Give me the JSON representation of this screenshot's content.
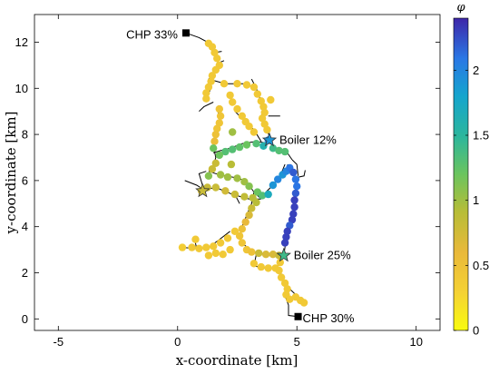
{
  "chart_data": {
    "type": "scatter",
    "title": "",
    "xlabel": "x-coordinate [km]",
    "ylabel": "y-coordinate [km]",
    "xlim": [
      -6,
      11
    ],
    "ylim": [
      -0.5,
      13.2
    ],
    "xticks": [
      -5,
      0,
      5,
      10
    ],
    "yticks": [
      0,
      2,
      4,
      6,
      8,
      10,
      12
    ],
    "grid": false,
    "colorbar": {
      "label": "φ",
      "range": [
        0,
        2.4
      ],
      "ticks": [
        0,
        0.5,
        1,
        1.5,
        2
      ],
      "colormap": "parula"
    },
    "network_lines": [
      [
        [
          0.35,
          12.4
        ],
        [
          0.9,
          12.2
        ],
        [
          1.35,
          11.95
        ],
        [
          1.55,
          11.55
        ],
        [
          1.7,
          11.1
        ],
        [
          1.6,
          10.7
        ],
        [
          1.3,
          10.4
        ],
        [
          1.4,
          10.0
        ],
        [
          1.2,
          9.6
        ]
      ],
      [
        [
          1.55,
          11.55
        ],
        [
          1.85,
          11.6
        ]
      ],
      [
        [
          1.7,
          11.1
        ],
        [
          1.95,
          11.2
        ]
      ],
      [
        [
          1.3,
          10.4
        ],
        [
          2.0,
          10.2
        ],
        [
          2.8,
          10.2
        ],
        [
          3.3,
          10.0
        ],
        [
          3.4,
          9.7
        ],
        [
          3.6,
          9.2
        ],
        [
          3.5,
          8.7
        ],
        [
          3.7,
          8.3
        ],
        [
          3.9,
          7.8
        ]
      ],
      [
        [
          3.3,
          10.0
        ],
        [
          3.1,
          10.4
        ]
      ],
      [
        [
          1.5,
          9.4
        ],
        [
          1.1,
          9.2
        ],
        [
          0.9,
          9.0
        ]
      ],
      [
        [
          2.4,
          9.0
        ],
        [
          2.8,
          8.6
        ],
        [
          3.2,
          8.2
        ],
        [
          3.5,
          7.7
        ]
      ],
      [
        [
          1.7,
          9.0
        ],
        [
          1.8,
          8.5
        ],
        [
          1.6,
          8.0
        ],
        [
          1.5,
          7.5
        ],
        [
          1.6,
          7.0
        ],
        [
          1.5,
          6.6
        ]
      ],
      [
        [
          3.8,
          8.8
        ],
        [
          4.3,
          8.8
        ]
      ],
      [
        [
          3.9,
          7.6
        ],
        [
          4.2,
          7.35
        ],
        [
          4.6,
          7.2
        ],
        [
          4.8,
          6.9
        ]
      ],
      [
        [
          3.9,
          7.6
        ],
        [
          3.3,
          7.7
        ],
        [
          2.7,
          7.6
        ],
        [
          2.2,
          7.4
        ],
        [
          1.8,
          7.3
        ],
        [
          1.5,
          7.2
        ]
      ],
      [
        [
          1.3,
          6.4
        ],
        [
          1.6,
          6.3
        ],
        [
          2.0,
          6.2
        ],
        [
          2.6,
          6.1
        ],
        [
          3.0,
          5.8
        ],
        [
          3.2,
          5.5
        ],
        [
          3.5,
          5.2
        ]
      ],
      [
        [
          3.2,
          5.5
        ],
        [
          3.1,
          5.0
        ],
        [
          2.9,
          4.5
        ],
        [
          2.7,
          4.0
        ],
        [
          2.6,
          3.5
        ],
        [
          2.8,
          3.2
        ],
        [
          3.2,
          2.9
        ],
        [
          3.8,
          2.8
        ],
        [
          4.3,
          2.8
        ]
      ],
      [
        [
          1.1,
          5.6
        ],
        [
          0.9,
          6.3
        ],
        [
          1.2,
          6.4
        ]
      ],
      [
        [
          1.1,
          5.6
        ],
        [
          1.6,
          5.7
        ]
      ],
      [
        [
          0.3,
          6.0
        ],
        [
          0.8,
          5.8
        ],
        [
          1.1,
          5.6
        ]
      ],
      [
        [
          1.6,
          5.7
        ],
        [
          2.3,
          5.4
        ],
        [
          3.0,
          5.2
        ],
        [
          3.5,
          5.2
        ]
      ],
      [
        [
          2.6,
          5.0
        ],
        [
          2.4,
          5.4
        ]
      ],
      [
        [
          2.2,
          3.8
        ],
        [
          1.7,
          3.4
        ],
        [
          1.3,
          3.1
        ],
        [
          0.8,
          3.05
        ],
        [
          0.2,
          3.1
        ]
      ],
      [
        [
          0.8,
          3.05
        ],
        [
          0.7,
          3.5
        ]
      ],
      [
        [
          4.5,
          6.7
        ],
        [
          4.3,
          6.2
        ],
        [
          4.0,
          5.8
        ],
        [
          3.7,
          5.5
        ],
        [
          3.6,
          5.3
        ]
      ],
      [
        [
          4.6,
          6.7
        ],
        [
          4.8,
          6.4
        ],
        [
          5.0,
          5.9
        ],
        [
          4.9,
          5.4
        ],
        [
          4.85,
          5.0
        ],
        [
          4.85,
          4.5
        ],
        [
          4.7,
          4.0
        ],
        [
          4.55,
          3.5
        ],
        [
          4.5,
          3.1
        ],
        [
          4.45,
          2.75
        ]
      ],
      [
        [
          4.85,
          6.1
        ],
        [
          5.3,
          6.2
        ],
        [
          5.35,
          6.45
        ]
      ],
      [
        [
          4.8,
          6.9
        ],
        [
          5.0,
          6.7
        ],
        [
          5.05,
          6.2
        ]
      ],
      [
        [
          4.4,
          2.75
        ],
        [
          4.2,
          2.3
        ],
        [
          4.4,
          1.8
        ],
        [
          4.6,
          1.4
        ],
        [
          4.5,
          1.0
        ],
        [
          4.65,
          0.6
        ],
        [
          4.65,
          0.15
        ],
        [
          5.05,
          0.1
        ]
      ],
      [
        [
          4.6,
          1.4
        ],
        [
          5.0,
          1.0
        ],
        [
          5.2,
          0.75
        ]
      ],
      [
        [
          3.3,
          2.8
        ],
        [
          3.2,
          2.3
        ],
        [
          3.6,
          2.2
        ],
        [
          4.0,
          2.2
        ]
      ]
    ],
    "points": [
      {
        "x": 1.3,
        "y": 11.95,
        "v": 0.4
      },
      {
        "x": 1.45,
        "y": 11.8,
        "v": 0.4
      },
      {
        "x": 1.55,
        "y": 11.55,
        "v": 0.4
      },
      {
        "x": 1.65,
        "y": 11.3,
        "v": 0.4
      },
      {
        "x": 1.75,
        "y": 11.0,
        "v": 0.4
      },
      {
        "x": 1.6,
        "y": 10.8,
        "v": 0.4
      },
      {
        "x": 1.45,
        "y": 10.55,
        "v": 0.4
      },
      {
        "x": 1.4,
        "y": 10.3,
        "v": 0.4
      },
      {
        "x": 1.3,
        "y": 10.05,
        "v": 0.4
      },
      {
        "x": 1.2,
        "y": 9.8,
        "v": 0.4
      },
      {
        "x": 1.2,
        "y": 9.55,
        "v": 0.4
      },
      {
        "x": 1.95,
        "y": 10.2,
        "v": 0.4
      },
      {
        "x": 2.5,
        "y": 10.2,
        "v": 0.4
      },
      {
        "x": 2.9,
        "y": 10.15,
        "v": 0.4
      },
      {
        "x": 3.2,
        "y": 10.05,
        "v": 0.4
      },
      {
        "x": 3.35,
        "y": 9.75,
        "v": 0.4
      },
      {
        "x": 3.5,
        "y": 9.45,
        "v": 0.4
      },
      {
        "x": 3.6,
        "y": 9.2,
        "v": 0.4
      },
      {
        "x": 3.65,
        "y": 8.95,
        "v": 0.4
      },
      {
        "x": 3.55,
        "y": 8.7,
        "v": 0.4
      },
      {
        "x": 3.65,
        "y": 8.45,
        "v": 0.4
      },
      {
        "x": 3.75,
        "y": 8.2,
        "v": 0.4
      },
      {
        "x": 3.9,
        "y": 9.5,
        "v": 0.4
      },
      {
        "x": 2.2,
        "y": 9.7,
        "v": 0.4
      },
      {
        "x": 2.3,
        "y": 9.4,
        "v": 0.4
      },
      {
        "x": 2.5,
        "y": 9.1,
        "v": 0.4
      },
      {
        "x": 2.7,
        "y": 8.8,
        "v": 0.4
      },
      {
        "x": 2.85,
        "y": 8.55,
        "v": 0.4
      },
      {
        "x": 3.0,
        "y": 8.35,
        "v": 0.4
      },
      {
        "x": 3.2,
        "y": 8.1,
        "v": 0.4
      },
      {
        "x": 1.75,
        "y": 9.1,
        "v": 0.45
      },
      {
        "x": 1.8,
        "y": 8.8,
        "v": 0.45
      },
      {
        "x": 1.75,
        "y": 8.5,
        "v": 0.45
      },
      {
        "x": 1.65,
        "y": 8.25,
        "v": 0.45
      },
      {
        "x": 1.6,
        "y": 8.0,
        "v": 0.5
      },
      {
        "x": 1.55,
        "y": 7.7,
        "v": 0.55
      },
      {
        "x": 2.3,
        "y": 8.1,
        "v": 1.0
      },
      {
        "x": 3.8,
        "y": 7.75,
        "v": 2.0
      },
      {
        "x": 3.6,
        "y": 7.5,
        "v": 1.6
      },
      {
        "x": 3.3,
        "y": 7.6,
        "v": 1.3
      },
      {
        "x": 2.9,
        "y": 7.55,
        "v": 1.2
      },
      {
        "x": 2.6,
        "y": 7.45,
        "v": 1.25
      },
      {
        "x": 2.3,
        "y": 7.35,
        "v": 1.3
      },
      {
        "x": 2.0,
        "y": 7.25,
        "v": 1.3
      },
      {
        "x": 1.75,
        "y": 7.1,
        "v": 1.2
      },
      {
        "x": 1.5,
        "y": 7.4,
        "v": 1.2
      },
      {
        "x": 4.0,
        "y": 7.4,
        "v": 1.4
      },
      {
        "x": 4.25,
        "y": 7.3,
        "v": 1.3
      },
      {
        "x": 4.5,
        "y": 7.25,
        "v": 1.3
      },
      {
        "x": 1.6,
        "y": 6.75,
        "v": 0.8
      },
      {
        "x": 1.45,
        "y": 6.5,
        "v": 0.8
      },
      {
        "x": 1.3,
        "y": 6.2,
        "v": 1.1
      },
      {
        "x": 1.8,
        "y": 6.25,
        "v": 1.0
      },
      {
        "x": 2.1,
        "y": 6.15,
        "v": 1.0
      },
      {
        "x": 2.5,
        "y": 6.1,
        "v": 1.0
      },
      {
        "x": 2.8,
        "y": 5.95,
        "v": 1.0
      },
      {
        "x": 3.0,
        "y": 5.75,
        "v": 1.1
      },
      {
        "x": 2.25,
        "y": 6.7,
        "v": 0.9
      },
      {
        "x": 3.35,
        "y": 5.5,
        "v": 1.2
      },
      {
        "x": 3.55,
        "y": 5.35,
        "v": 1.3
      },
      {
        "x": 3.8,
        "y": 5.4,
        "v": 1.7
      },
      {
        "x": 4.0,
        "y": 5.8,
        "v": 1.9
      },
      {
        "x": 4.2,
        "y": 6.05,
        "v": 2.0
      },
      {
        "x": 4.4,
        "y": 6.25,
        "v": 1.9
      },
      {
        "x": 4.55,
        "y": 6.4,
        "v": 2.0
      },
      {
        "x": 4.7,
        "y": 6.55,
        "v": 2.1
      },
      {
        "x": 4.85,
        "y": 6.35,
        "v": 2.2
      },
      {
        "x": 4.95,
        "y": 6.05,
        "v": 2.1
      },
      {
        "x": 5.0,
        "y": 5.75,
        "v": 2.1
      },
      {
        "x": 4.95,
        "y": 5.45,
        "v": 2.2
      },
      {
        "x": 4.9,
        "y": 5.15,
        "v": 2.3
      },
      {
        "x": 4.9,
        "y": 4.85,
        "v": 2.3
      },
      {
        "x": 4.85,
        "y": 4.55,
        "v": 2.3
      },
      {
        "x": 4.8,
        "y": 4.3,
        "v": 2.3
      },
      {
        "x": 4.7,
        "y": 4.05,
        "v": 2.2
      },
      {
        "x": 4.6,
        "y": 3.8,
        "v": 2.3
      },
      {
        "x": 4.55,
        "y": 3.55,
        "v": 2.3
      },
      {
        "x": 4.5,
        "y": 3.3,
        "v": 2.3
      },
      {
        "x": 1.0,
        "y": 5.55,
        "v": 0.75
      },
      {
        "x": 1.25,
        "y": 5.7,
        "v": 0.8
      },
      {
        "x": 1.6,
        "y": 5.7,
        "v": 0.8
      },
      {
        "x": 2.0,
        "y": 5.55,
        "v": 0.75
      },
      {
        "x": 2.4,
        "y": 5.4,
        "v": 0.8
      },
      {
        "x": 2.8,
        "y": 5.3,
        "v": 0.85
      },
      {
        "x": 3.15,
        "y": 5.25,
        "v": 0.9
      },
      {
        "x": 3.3,
        "y": 5.05,
        "v": 0.9
      },
      {
        "x": 3.1,
        "y": 4.8,
        "v": 0.8
      },
      {
        "x": 3.0,
        "y": 4.5,
        "v": 0.7
      },
      {
        "x": 2.85,
        "y": 4.2,
        "v": 0.6
      },
      {
        "x": 2.7,
        "y": 3.9,
        "v": 0.5
      },
      {
        "x": 2.6,
        "y": 3.6,
        "v": 0.45
      },
      {
        "x": 2.7,
        "y": 3.3,
        "v": 0.45
      },
      {
        "x": 2.9,
        "y": 3.0,
        "v": 0.45
      },
      {
        "x": 3.1,
        "y": 2.9,
        "v": 0.5
      },
      {
        "x": 3.4,
        "y": 2.85,
        "v": 0.8
      },
      {
        "x": 3.7,
        "y": 2.8,
        "v": 0.7
      },
      {
        "x": 4.0,
        "y": 2.8,
        "v": 0.7
      },
      {
        "x": 4.25,
        "y": 2.75,
        "v": 0.8
      },
      {
        "x": 2.4,
        "y": 3.8,
        "v": 0.4
      },
      {
        "x": 2.1,
        "y": 3.5,
        "v": 0.4
      },
      {
        "x": 1.8,
        "y": 3.3,
        "v": 0.4
      },
      {
        "x": 1.5,
        "y": 3.15,
        "v": 0.4
      },
      {
        "x": 1.2,
        "y": 3.1,
        "v": 0.4
      },
      {
        "x": 0.9,
        "y": 3.05,
        "v": 0.4
      },
      {
        "x": 0.6,
        "y": 3.1,
        "v": 0.4
      },
      {
        "x": 0.2,
        "y": 3.1,
        "v": 0.35
      },
      {
        "x": 0.75,
        "y": 3.45,
        "v": 0.4
      },
      {
        "x": 2.2,
        "y": 3.0,
        "v": 0.4
      },
      {
        "x": 1.9,
        "y": 2.8,
        "v": 0.4
      },
      {
        "x": 1.6,
        "y": 2.85,
        "v": 0.4
      },
      {
        "x": 1.3,
        "y": 2.75,
        "v": 0.4
      },
      {
        "x": 3.2,
        "y": 2.4,
        "v": 0.4
      },
      {
        "x": 3.5,
        "y": 2.25,
        "v": 0.4
      },
      {
        "x": 3.8,
        "y": 2.2,
        "v": 0.4
      },
      {
        "x": 4.1,
        "y": 2.2,
        "v": 0.4
      },
      {
        "x": 4.3,
        "y": 2.45,
        "v": 0.4
      },
      {
        "x": 4.25,
        "y": 2.1,
        "v": 0.4
      },
      {
        "x": 4.35,
        "y": 1.8,
        "v": 0.4
      },
      {
        "x": 4.5,
        "y": 1.55,
        "v": 0.4
      },
      {
        "x": 4.6,
        "y": 1.3,
        "v": 0.4
      },
      {
        "x": 4.55,
        "y": 1.05,
        "v": 0.4
      },
      {
        "x": 4.7,
        "y": 0.85,
        "v": 0.4
      },
      {
        "x": 4.95,
        "y": 0.95,
        "v": 0.4
      },
      {
        "x": 5.15,
        "y": 0.8,
        "v": 0.4
      },
      {
        "x": 5.3,
        "y": 0.7,
        "v": 0.4
      }
    ],
    "markers": [
      {
        "type": "square",
        "x": 0.35,
        "y": 12.4,
        "label": "CHP 33%"
      },
      {
        "type": "square",
        "x": 5.05,
        "y": 0.1,
        "label": "CHP 30%"
      },
      {
        "type": "star",
        "x": 3.85,
        "y": 7.75,
        "v": 1.9,
        "label": "Boiler 12%"
      },
      {
        "type": "star",
        "x": 4.45,
        "y": 2.75,
        "v": 1.4,
        "label": "Boiler 25%"
      },
      {
        "type": "star",
        "x": 1.05,
        "y": 5.55,
        "v": 0.8,
        "label": ""
      }
    ]
  }
}
